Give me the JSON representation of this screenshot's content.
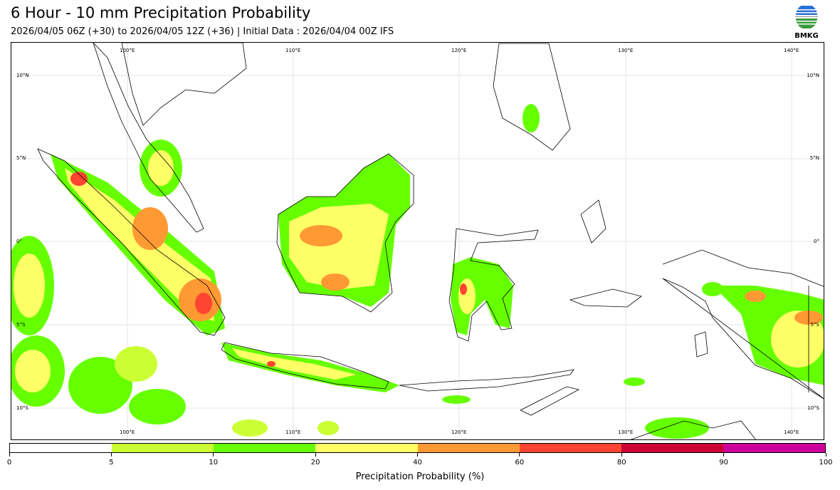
{
  "header": {
    "title": "6 Hour - 10 mm Precipitation Probability",
    "subtitle": "2026/04/05 06Z (+30) to 2026/04/05 12Z (+36) | Initial Data : 2026/04/04 00Z IFS"
  },
  "logo": {
    "text": "BMKG"
  },
  "map": {
    "lon_labels": [
      "100°E",
      "110°E",
      "120°E",
      "130°E",
      "140°E"
    ],
    "lat_labels": [
      "10°N",
      "5°N",
      "0°",
      "5°S",
      "10°S"
    ]
  },
  "colorbar": {
    "label": "Precipitation Probability (%)",
    "ticks": [
      "0",
      "5",
      "10",
      "20",
      "40",
      "60",
      "80",
      "90",
      "100"
    ],
    "colors": [
      "#ffffff",
      "#ccff33",
      "#66ff00",
      "#ffff66",
      "#ff9933",
      "#ff4433",
      "#cc0033",
      "#cc0099"
    ]
  }
}
